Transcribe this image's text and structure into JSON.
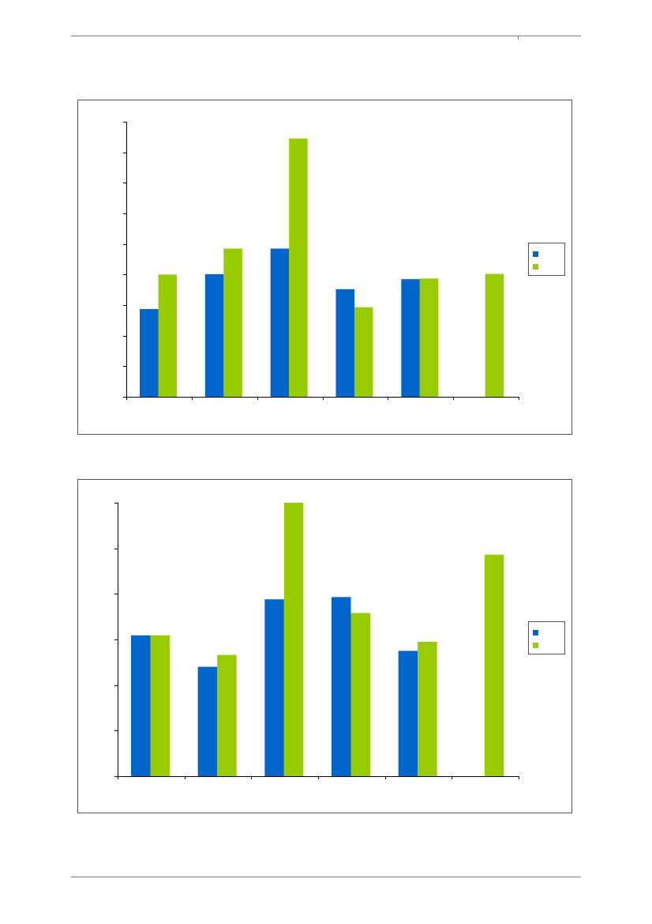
{
  "colors": {
    "series_a": "#0066CC",
    "series_b": "#99CC00",
    "axis": "#000000",
    "frame": "#555555"
  },
  "chart_data": [
    {
      "type": "bar",
      "title": "",
      "xlabel": "",
      "ylabel": "",
      "categories": [
        "",
        "",
        "",
        "",
        "",
        ""
      ],
      "ylim": [
        0,
        9
      ],
      "grid": false,
      "legend": "right",
      "series": [
        {
          "name": "",
          "color": "#0066CC",
          "values": [
            2.87,
            4.01,
            4.85,
            3.52,
            3.85,
            null
          ]
        },
        {
          "name": "",
          "color": "#99CC00",
          "values": [
            4.0,
            4.85,
            8.45,
            2.93,
            3.87,
            4.02
          ]
        }
      ]
    },
    {
      "type": "bar",
      "title": "",
      "xlabel": "",
      "ylabel": "",
      "categories": [
        "",
        "",
        "",
        "",
        "",
        ""
      ],
      "ylim": [
        0,
        6
      ],
      "grid": false,
      "legend": "right",
      "series": [
        {
          "name": "",
          "color": "#0066CC",
          "values": [
            3.09,
            2.4,
            3.88,
            3.93,
            2.75,
            null
          ]
        },
        {
          "name": "",
          "color": "#99CC00",
          "values": [
            3.09,
            2.66,
            6.0,
            3.58,
            2.95,
            4.86
          ]
        }
      ]
    }
  ]
}
